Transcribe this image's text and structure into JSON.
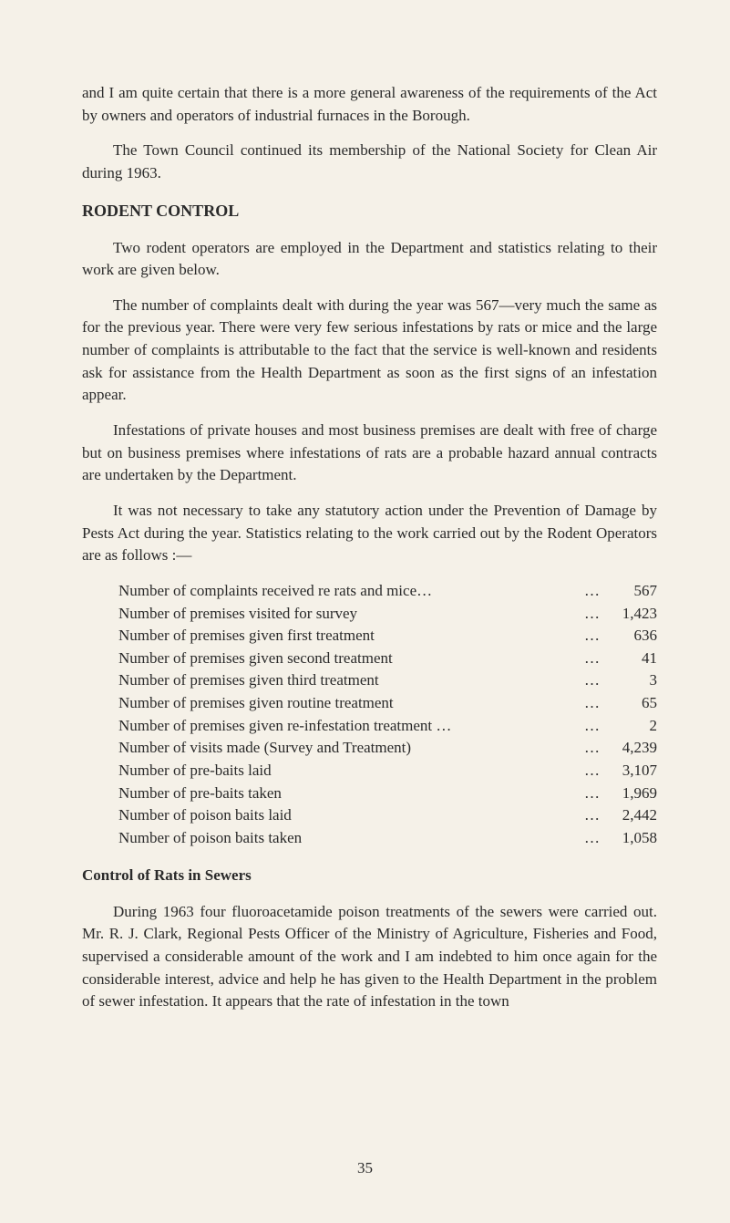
{
  "para1": "and I am quite certain that there is a more general awareness of the requirements of the Act by owners and operators of industrial furnaces in the Borough.",
  "para2": "The Town Council continued its membership of the National Society for Clean Air during 1963.",
  "heading1": "RODENT CONTROL",
  "para3": "Two rodent operators are employed in the Department and statistics relating to their work are given below.",
  "para4": "The number of complaints dealt with during the year was 567—very much the same as for the previous year. There were very few serious infestations by rats or mice and the large number of complaints is attributable to the fact that the service is well-known and residents ask for assistance from the Health Depart­ment as soon as the first signs of an infestation appear.",
  "para5": "Infestations of private houses and most business premises are dealt with free of charge but on business premises where infestations of rats are a probable hazard annual contracts are undertaken by the Department.",
  "para6": "It was not necessary to take any statutory action under the Prevention of Damage by Pests Act during the year. Statistics relating to the work carried out by the Rodent Operators are as follows :—",
  "stats": [
    {
      "label": "Number of complaints received re rats and mice…",
      "value": "567"
    },
    {
      "label": "Number of premises visited for survey",
      "value": "1,423"
    },
    {
      "label": "Number of premises given first treatment",
      "value": "636"
    },
    {
      "label": "Number of premises given second treatment",
      "value": "41"
    },
    {
      "label": "Number of premises given third treatment",
      "value": "3"
    },
    {
      "label": "Number of premises given routine treatment",
      "value": "65"
    },
    {
      "label": "Number of premises given re-infestation treatment …",
      "value": "2"
    },
    {
      "label": "Number of visits made (Survey and Treatment)",
      "value": "4,239"
    },
    {
      "label": "Number of pre-baits laid",
      "value": "3,107"
    },
    {
      "label": "Number of pre-baits taken",
      "value": "1,969"
    },
    {
      "label": "Number of poison baits laid",
      "value": "2,442"
    },
    {
      "label": "Number of poison baits taken",
      "value": "1,058"
    }
  ],
  "heading2": "Control of Rats in Sewers",
  "para7": "During 1963 four fluoroacetamide poison treatments of the sewers were carried out. Mr. R. J. Clark, Regional Pests Officer of the Ministry of Agriculture, Fisheries and Food, supervised a considerable amount of the work and I am indebted to him once again for the considerable interest, advice and help he has given to the Health Department in the problem of sewer in­festation. It appears that the rate of infestation in the town",
  "pageNumber": "35"
}
